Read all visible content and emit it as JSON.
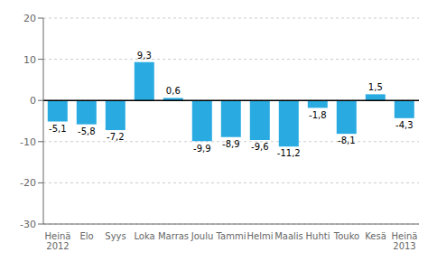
{
  "chart_data": {
    "type": "bar",
    "categories": [
      "Heinä\n2012",
      "Elo",
      "Syys",
      "Loka",
      "Marras",
      "Joulu",
      "Tammi",
      "Helmi",
      "Maalis",
      "Huhti",
      "Touko",
      "Kesä",
      "Heinä\n2013"
    ],
    "values": [
      -5.1,
      -5.8,
      -7.2,
      9.3,
      0.6,
      -9.9,
      -8.9,
      -9.6,
      -11.2,
      -1.8,
      -8.1,
      1.5,
      -4.3
    ],
    "value_labels": [
      "-5,1",
      "-5,8",
      "-7,2",
      "9,3",
      "0,6",
      "-9,9",
      "-8,9",
      "-9,6",
      "-11,2",
      "-1,8",
      "-8,1",
      "1,5",
      "-4,3"
    ],
    "data_labels": true,
    "color": "#29ABE2",
    "ylim": [
      -30,
      20
    ],
    "yticks": [
      -30,
      -20,
      -10,
      0,
      10,
      20
    ],
    "grid": true
  }
}
